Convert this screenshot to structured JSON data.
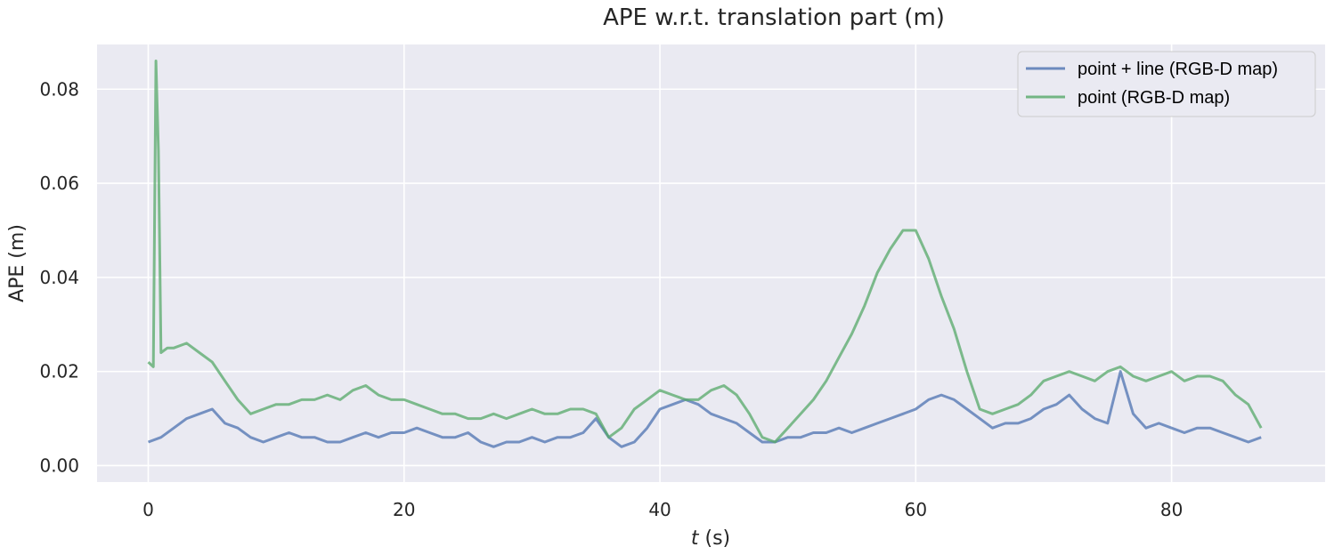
{
  "chart_data": {
    "type": "line",
    "title": "APE w.r.t. translation part (m)",
    "xlabel_italic": "t",
    "xlabel_rest": " (s)",
    "ylabel": "APE (m)",
    "xlim": [
      -4,
      92
    ],
    "ylim": [
      -0.0035,
      0.0895
    ],
    "xticks": [
      0,
      20,
      40,
      60,
      80
    ],
    "xtick_labels": [
      "0",
      "20",
      "40",
      "60",
      "80"
    ],
    "yticks": [
      0.0,
      0.02,
      0.04,
      0.06,
      0.08
    ],
    "ytick_labels": [
      "0.00",
      "0.02",
      "0.04",
      "0.06",
      "0.08"
    ],
    "grid": true,
    "legend_position": "top-right",
    "background": "#eaeaf2",
    "series": [
      {
        "name": "point + line (RGB-D map)",
        "color": "#4c72b0",
        "x": [
          0,
          1,
          2,
          3,
          4,
          5,
          6,
          7,
          8,
          9,
          10,
          11,
          12,
          13,
          14,
          15,
          16,
          17,
          18,
          19,
          20,
          21,
          22,
          23,
          24,
          25,
          26,
          27,
          28,
          29,
          30,
          31,
          32,
          33,
          34,
          35,
          36,
          37,
          38,
          39,
          40,
          41,
          42,
          43,
          44,
          45,
          46,
          47,
          48,
          49,
          50,
          51,
          52,
          53,
          54,
          55,
          56,
          57,
          58,
          59,
          60,
          61,
          62,
          63,
          64,
          65,
          66,
          67,
          68,
          69,
          70,
          71,
          72,
          73,
          74,
          75,
          76,
          77,
          78,
          79,
          80,
          81,
          82,
          83,
          84,
          85,
          86,
          87
        ],
        "y": [
          0.005,
          0.006,
          0.008,
          0.01,
          0.011,
          0.012,
          0.009,
          0.008,
          0.006,
          0.005,
          0.006,
          0.007,
          0.006,
          0.006,
          0.005,
          0.005,
          0.006,
          0.007,
          0.006,
          0.007,
          0.007,
          0.008,
          0.007,
          0.006,
          0.006,
          0.007,
          0.005,
          0.004,
          0.005,
          0.005,
          0.006,
          0.005,
          0.006,
          0.006,
          0.007,
          0.01,
          0.006,
          0.004,
          0.005,
          0.008,
          0.012,
          0.013,
          0.014,
          0.013,
          0.011,
          0.01,
          0.009,
          0.007,
          0.005,
          0.005,
          0.006,
          0.006,
          0.007,
          0.007,
          0.008,
          0.007,
          0.008,
          0.009,
          0.01,
          0.011,
          0.012,
          0.014,
          0.015,
          0.014,
          0.012,
          0.01,
          0.008,
          0.009,
          0.009,
          0.01,
          0.012,
          0.013,
          0.015,
          0.012,
          0.01,
          0.009,
          0.02,
          0.011,
          0.008,
          0.009,
          0.008,
          0.007,
          0.008,
          0.008,
          0.007,
          0.006,
          0.005,
          0.006
        ]
      },
      {
        "name": "point (RGB-D map)",
        "color": "#55a868",
        "x": [
          0,
          0.4,
          0.6,
          0.8,
          1,
          1.5,
          2,
          3,
          4,
          5,
          6,
          7,
          8,
          9,
          10,
          11,
          12,
          13,
          14,
          15,
          16,
          17,
          18,
          19,
          20,
          21,
          22,
          23,
          24,
          25,
          26,
          27,
          28,
          29,
          30,
          31,
          32,
          33,
          34,
          35,
          36,
          37,
          38,
          39,
          40,
          41,
          42,
          43,
          44,
          45,
          46,
          47,
          48,
          49,
          50,
          51,
          52,
          53,
          54,
          55,
          56,
          57,
          58,
          59,
          60,
          61,
          62,
          63,
          64,
          65,
          66,
          67,
          68,
          69,
          70,
          71,
          72,
          73,
          74,
          75,
          76,
          77,
          78,
          79,
          80,
          81,
          82,
          83,
          84,
          85,
          86,
          87
        ],
        "y": [
          0.022,
          0.021,
          0.086,
          0.067,
          0.024,
          0.025,
          0.025,
          0.026,
          0.024,
          0.022,
          0.018,
          0.014,
          0.011,
          0.012,
          0.013,
          0.013,
          0.014,
          0.014,
          0.015,
          0.014,
          0.016,
          0.017,
          0.015,
          0.014,
          0.014,
          0.013,
          0.012,
          0.011,
          0.011,
          0.01,
          0.01,
          0.011,
          0.01,
          0.011,
          0.012,
          0.011,
          0.011,
          0.012,
          0.012,
          0.011,
          0.006,
          0.008,
          0.012,
          0.014,
          0.016,
          0.015,
          0.014,
          0.014,
          0.016,
          0.017,
          0.015,
          0.011,
          0.006,
          0.005,
          0.008,
          0.011,
          0.014,
          0.018,
          0.023,
          0.028,
          0.034,
          0.041,
          0.046,
          0.05,
          0.05,
          0.044,
          0.036,
          0.029,
          0.02,
          0.012,
          0.011,
          0.012,
          0.013,
          0.015,
          0.018,
          0.019,
          0.02,
          0.019,
          0.018,
          0.02,
          0.021,
          0.019,
          0.018,
          0.019,
          0.02,
          0.018,
          0.019,
          0.019,
          0.018,
          0.015,
          0.013,
          0.008
        ]
      }
    ]
  }
}
